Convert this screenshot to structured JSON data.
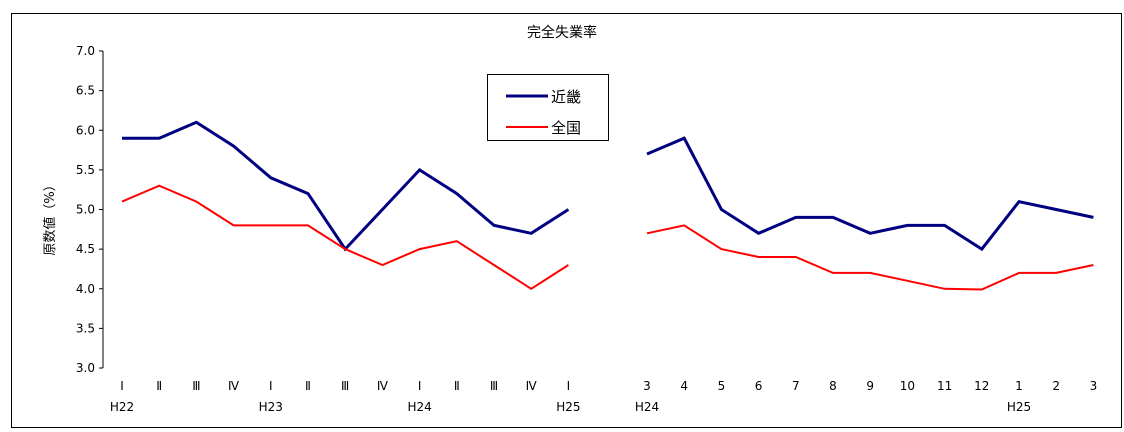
{
  "chart_data": {
    "type": "line",
    "title": "完全失業率",
    "ylabel": "原数値（%）",
    "ylim": [
      3.0,
      7.0
    ],
    "ytick_step": 0.5,
    "grid": false,
    "legend_position": "top-center",
    "colors": {
      "kinki": "#000080",
      "national": "#ff0000"
    },
    "legend": [
      {
        "key": "kinki",
        "label": "近畿"
      },
      {
        "key": "national",
        "label": "全国"
      }
    ],
    "panels": [
      {
        "id": "quarterly",
        "categories": [
          "Ⅰ",
          "Ⅱ",
          "Ⅲ",
          "Ⅳ",
          "Ⅰ",
          "Ⅱ",
          "Ⅲ",
          "Ⅳ",
          "Ⅰ",
          "Ⅱ",
          "Ⅲ",
          "Ⅳ",
          "Ⅰ"
        ],
        "eras": [
          {
            "index": 0,
            "label": "H22"
          },
          {
            "index": 4,
            "label": "H23"
          },
          {
            "index": 8,
            "label": "H24"
          },
          {
            "index": 12,
            "label": "H25"
          }
        ],
        "series": [
          {
            "key": "kinki",
            "name": "近畿",
            "values": [
              5.9,
              5.9,
              6.1,
              5.8,
              5.4,
              5.2,
              4.5,
              5.0,
              5.5,
              5.2,
              4.8,
              4.7,
              5.0
            ]
          },
          {
            "key": "national",
            "name": "全国",
            "values": [
              5.1,
              5.3,
              5.1,
              4.8,
              4.8,
              4.8,
              4.5,
              4.3,
              4.5,
              4.6,
              4.3,
              4.0,
              4.3
            ]
          }
        ]
      },
      {
        "id": "monthly",
        "categories": [
          "3",
          "4",
          "5",
          "6",
          "7",
          "8",
          "9",
          "10",
          "11",
          "12",
          "1",
          "2",
          "3"
        ],
        "eras": [
          {
            "index": 0,
            "label": "H24"
          },
          {
            "index": 10,
            "label": "H25"
          }
        ],
        "series": [
          {
            "key": "kinki",
            "name": "近畿",
            "values": [
              5.7,
              5.9,
              5.0,
              4.7,
              4.9,
              4.9,
              4.7,
              4.8,
              4.8,
              4.5,
              5.1,
              5.0,
              4.9
            ]
          },
          {
            "key": "national",
            "name": "全国",
            "values": [
              4.7,
              4.8,
              4.5,
              4.4,
              4.4,
              4.2,
              4.2,
              4.1,
              4.0,
              3.99,
              4.2,
              4.2,
              4.3
            ]
          }
        ]
      }
    ]
  }
}
